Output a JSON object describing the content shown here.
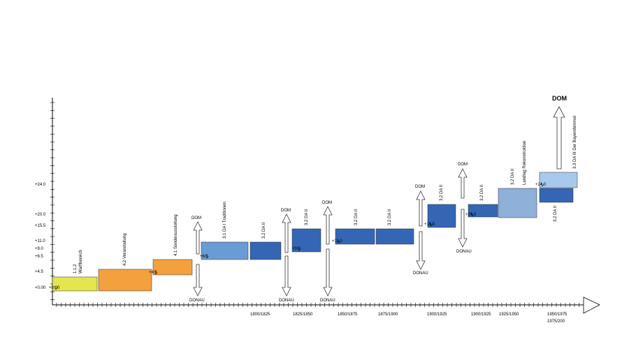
{
  "colors": {
    "yellow": "#e4e54f",
    "orange": "#f3a03f",
    "light_blue": "#6a9bd4",
    "dark_blue": "#3466b5",
    "steel_blue": "#8fb0d8",
    "pale_blue": "#a9c9ec"
  },
  "y_labels": [
    "+24.0",
    "+20.0",
    "+15.5",
    "+11.0",
    "+9.0",
    "+6.5",
    "+4.5",
    "+0.00"
  ],
  "eras": [
    "1800/1825",
    "1825/1850",
    "1850/1875",
    "1875/1900",
    "1900/1925",
    "1900/1925",
    "1925/1950",
    "1950/1975",
    "1975/200"
  ],
  "boxes": [
    {
      "label": "1.1.2",
      "label2": "Warftbereich",
      "color": "yellow"
    },
    {
      "label": "4.2 Veranstaltung",
      "color": "orange"
    },
    {
      "label": "4.1 Sonderausstellung",
      "color": "orange"
    },
    {
      "label": "3.1 DA I Traditionen",
      "color": "light_blue"
    },
    {
      "label": "3.2 DA II",
      "color": "dark_blue"
    },
    {
      "label": "3.2 DA II",
      "color": "dark_blue"
    },
    {
      "label": "3.2 DA II",
      "color": "dark_blue"
    },
    {
      "label": "3.2 DA II",
      "color": "dark_blue"
    },
    {
      "label": "3.2 DA II",
      "color": "dark_blue"
    },
    {
      "label": "3.2 DA II",
      "color": "dark_blue"
    },
    {
      "label": "3.2 DA II",
      "label2": "Landtag Rekonstruktion",
      "color": "steel_blue"
    },
    {
      "label": "3.2 DA II",
      "color": "dark_blue"
    },
    {
      "label": "3.3 DA III Der Bayernhimmel",
      "color": "pale_blue"
    }
  ],
  "markers": [
    "+0.00",
    "+4.5",
    "+6.5",
    "+9.0",
    "+11.0",
    "+15.5",
    "+20.0",
    "+24.0"
  ],
  "arrows": [
    {
      "top": "DOM",
      "bottom": "DONAU"
    },
    {
      "top": "DOM",
      "bottom": "DONAU"
    },
    {
      "top": "DOM",
      "bottom": "DONAU"
    },
    {
      "top": "DOM",
      "bottom": "DONAU"
    },
    {
      "top": "DOM",
      "bottom": "DONAU"
    },
    {
      "top": "DOM"
    }
  ]
}
